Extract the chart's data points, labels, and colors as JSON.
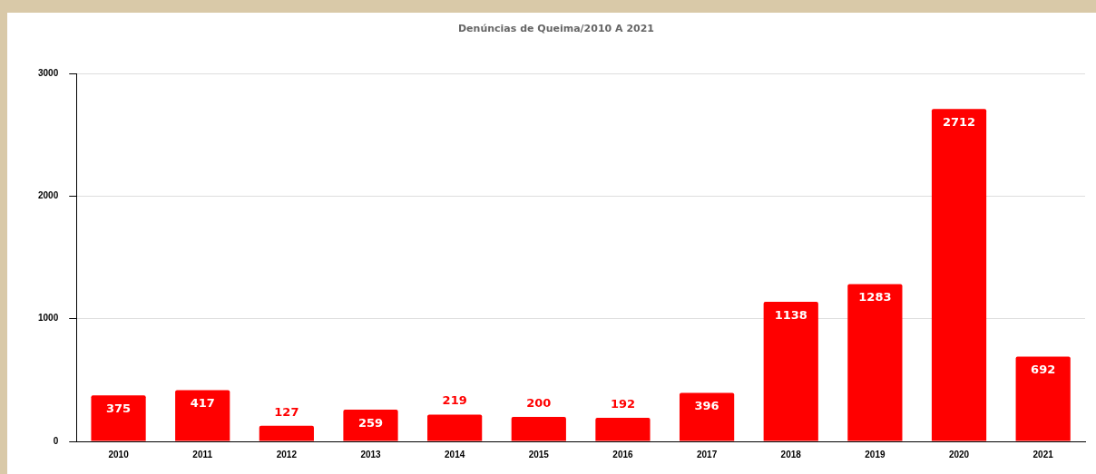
{
  "chart_data": {
    "type": "bar",
    "title": "Denúncias de Queima/2010 A 2021",
    "categories": [
      "2010",
      "2011",
      "2012",
      "2013",
      "2014",
      "2015",
      "2016",
      "2017",
      "2018",
      "2019",
      "2020",
      "2021"
    ],
    "values": [
      375,
      417,
      127,
      259,
      219,
      200,
      192,
      396,
      1138,
      1283,
      2712,
      692
    ],
    "color": "#ff0000",
    "ylim": [
      0,
      3000
    ],
    "yticks": [
      0,
      1000,
      2000,
      3000
    ],
    "grid": "y",
    "legend": false,
    "data_labels": true
  }
}
